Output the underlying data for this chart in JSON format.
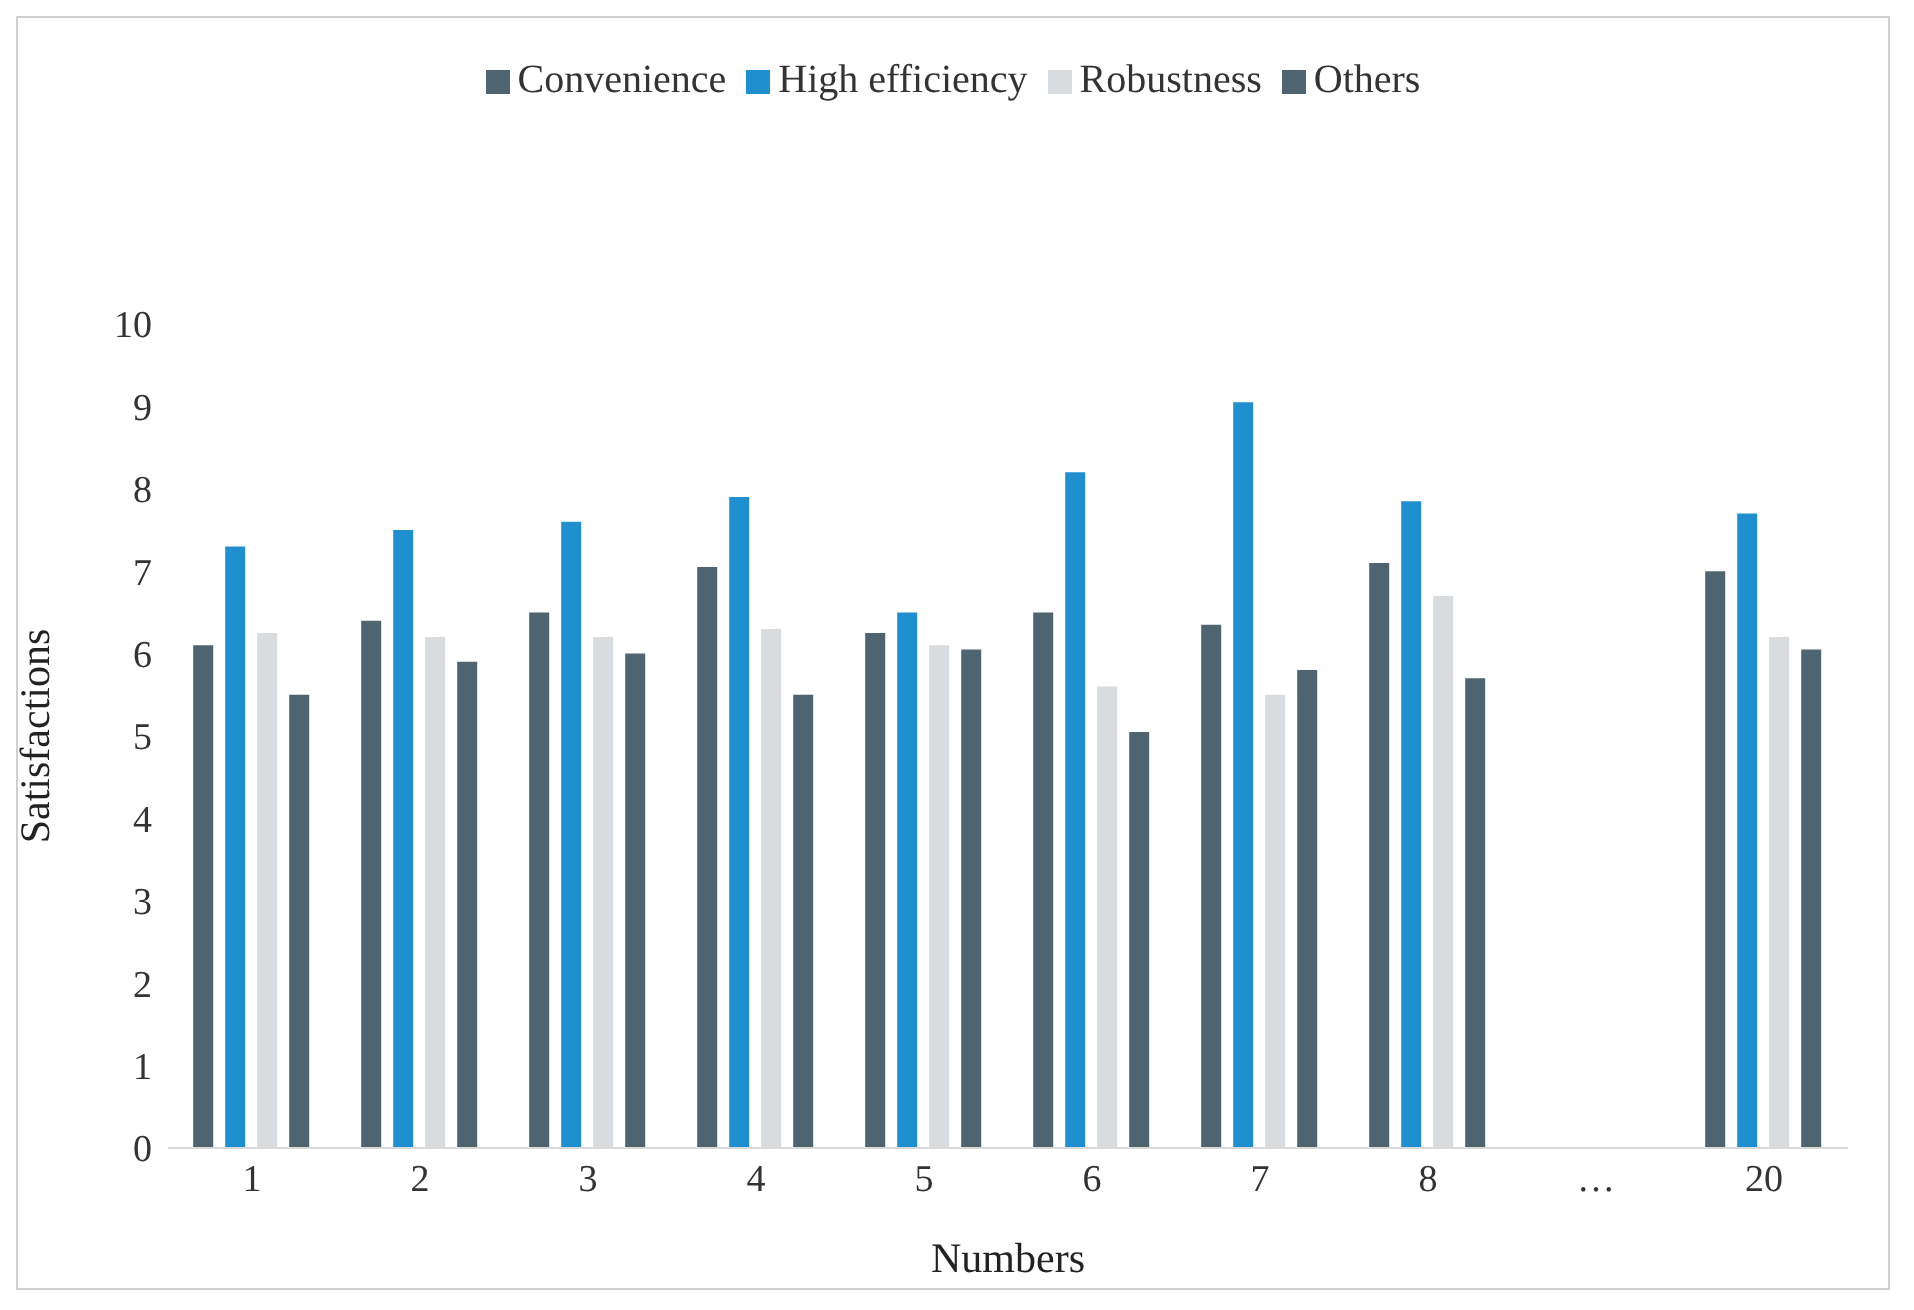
{
  "chart_data": {
    "type": "bar",
    "xlabel": "Numbers",
    "ylabel": "Satisfactions",
    "categories": [
      "1",
      "2",
      "3",
      "4",
      "5",
      "6",
      "7",
      "8",
      "…",
      "20"
    ],
    "series": [
      {
        "name": "Convenience",
        "color": "#4e6470",
        "values": [
          6.1,
          6.4,
          6.5,
          7.05,
          6.25,
          6.5,
          6.35,
          7.1,
          null,
          7.0
        ]
      },
      {
        "name": "High efficiency",
        "color": "#1f8fd0",
        "values": [
          7.3,
          7.5,
          7.6,
          7.9,
          6.5,
          8.2,
          9.05,
          7.85,
          null,
          7.7
        ]
      },
      {
        "name": "Robustness",
        "color": "#d8dcde",
        "values": [
          6.25,
          6.2,
          6.2,
          6.3,
          6.1,
          5.6,
          5.5,
          6.7,
          null,
          6.2
        ]
      },
      {
        "name": "Others",
        "color": "#4e6470",
        "values": [
          5.5,
          5.9,
          6.0,
          5.5,
          6.05,
          5.05,
          5.8,
          5.7,
          null,
          6.05
        ]
      }
    ],
    "ylim": [
      0,
      10
    ],
    "yticks": [
      0,
      1,
      2,
      3,
      4,
      5,
      6,
      7,
      8,
      9,
      10
    ],
    "grid": false,
    "legend": "top"
  }
}
